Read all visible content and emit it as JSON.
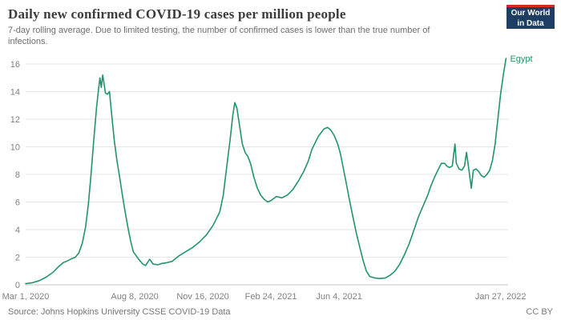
{
  "header": {
    "title": "Daily new confirmed COVID-19 cases per million people",
    "subtitle": "7-day rolling average. Due to limited testing, the number of confirmed cases is lower than the true number of infections.",
    "logo_line1": "Our World",
    "logo_line2": "in Data",
    "logo_bg": "#1d3d63",
    "logo_accent": "#d42b21"
  },
  "footer": {
    "source": "Source: Johns Hopkins University CSSE COVID-19 Data",
    "license": "CC BY"
  },
  "chart_data": {
    "type": "line",
    "title": "Daily new confirmed COVID-19 cases per million people",
    "xlabel": "",
    "ylabel": "",
    "grid": true,
    "legend_position": "end-of-line",
    "x_unit": "days since Mar 1, 2020",
    "xlim_days": [
      0,
      708
    ],
    "ylim": [
      0,
      16.5
    ],
    "y_ticks": [
      0,
      2,
      4,
      6,
      8,
      10,
      12,
      14,
      16
    ],
    "x_ticks": [
      {
        "day": 0,
        "label": "Mar 1, 2020"
      },
      {
        "day": 160,
        "label": "Aug 8, 2020"
      },
      {
        "day": 260,
        "label": "Nov 16, 2020"
      },
      {
        "day": 360,
        "label": "Feb 24, 2021"
      },
      {
        "day": 460,
        "label": "Jun 4, 2021"
      },
      {
        "day": 697,
        "label": "Jan 27, 2022"
      }
    ],
    "series": [
      {
        "name": "Egypt",
        "color": "#22946b",
        "points": [
          [
            0,
            0.08
          ],
          [
            10,
            0.15
          ],
          [
            20,
            0.3
          ],
          [
            30,
            0.55
          ],
          [
            40,
            0.9
          ],
          [
            48,
            1.3
          ],
          [
            55,
            1.6
          ],
          [
            62,
            1.75
          ],
          [
            68,
            1.9
          ],
          [
            73,
            2.0
          ],
          [
            78,
            2.3
          ],
          [
            83,
            3.0
          ],
          [
            88,
            4.2
          ],
          [
            92,
            5.8
          ],
          [
            96,
            8.0
          ],
          [
            100,
            10.5
          ],
          [
            104,
            12.8
          ],
          [
            107,
            14.2
          ],
          [
            109,
            15.0
          ],
          [
            111,
            14.3
          ],
          [
            113,
            15.2
          ],
          [
            115,
            14.6
          ],
          [
            117,
            13.9
          ],
          [
            120,
            13.8
          ],
          [
            123,
            14.0
          ],
          [
            126,
            12.5
          ],
          [
            130,
            10.5
          ],
          [
            134,
            9.0
          ],
          [
            138,
            7.8
          ],
          [
            142,
            6.5
          ],
          [
            146,
            5.3
          ],
          [
            150,
            4.2
          ],
          [
            154,
            3.2
          ],
          [
            158,
            2.4
          ],
          [
            165,
            1.9
          ],
          [
            172,
            1.5
          ],
          [
            176,
            1.4
          ],
          [
            182,
            1.85
          ],
          [
            187,
            1.5
          ],
          [
            194,
            1.45
          ],
          [
            200,
            1.55
          ],
          [
            207,
            1.6
          ],
          [
            215,
            1.7
          ],
          [
            225,
            2.1
          ],
          [
            235,
            2.4
          ],
          [
            245,
            2.7
          ],
          [
            255,
            3.1
          ],
          [
            265,
            3.6
          ],
          [
            275,
            4.3
          ],
          [
            282,
            5.0
          ],
          [
            285,
            5.3
          ],
          [
            290,
            6.5
          ],
          [
            295,
            8.5
          ],
          [
            300,
            10.5
          ],
          [
            304,
            12.3
          ],
          [
            307,
            13.2
          ],
          [
            310,
            12.8
          ],
          [
            314,
            11.5
          ],
          [
            318,
            10.2
          ],
          [
            322,
            9.6
          ],
          [
            326,
            9.3
          ],
          [
            330,
            8.8
          ],
          [
            335,
            7.8
          ],
          [
            340,
            7.0
          ],
          [
            345,
            6.5
          ],
          [
            350,
            6.2
          ],
          [
            355,
            6.0
          ],
          [
            360,
            6.1
          ],
          [
            368,
            6.4
          ],
          [
            376,
            6.3
          ],
          [
            384,
            6.5
          ],
          [
            392,
            6.9
          ],
          [
            400,
            7.5
          ],
          [
            408,
            8.2
          ],
          [
            415,
            9.0
          ],
          [
            420,
            9.8
          ],
          [
            430,
            10.8
          ],
          [
            438,
            11.3
          ],
          [
            443,
            11.4
          ],
          [
            448,
            11.2
          ],
          [
            453,
            10.8
          ],
          [
            458,
            10.2
          ],
          [
            462,
            9.5
          ],
          [
            466,
            8.5
          ],
          [
            470,
            7.5
          ],
          [
            475,
            6.2
          ],
          [
            480,
            5.0
          ],
          [
            485,
            3.8
          ],
          [
            490,
            2.8
          ],
          [
            495,
            1.8
          ],
          [
            500,
            1.0
          ],
          [
            505,
            0.6
          ],
          [
            512,
            0.5
          ],
          [
            520,
            0.45
          ],
          [
            528,
            0.5
          ],
          [
            535,
            0.7
          ],
          [
            542,
            1.0
          ],
          [
            549,
            1.5
          ],
          [
            556,
            2.2
          ],
          [
            563,
            3.0
          ],
          [
            570,
            4.0
          ],
          [
            577,
            5.0
          ],
          [
            584,
            5.8
          ],
          [
            590,
            6.5
          ],
          [
            595,
            7.2
          ],
          [
            600,
            7.8
          ],
          [
            605,
            8.3
          ],
          [
            610,
            8.8
          ],
          [
            615,
            8.8
          ],
          [
            618,
            8.6
          ],
          [
            622,
            8.5
          ],
          [
            626,
            8.6
          ],
          [
            630,
            10.2
          ],
          [
            632,
            8.8
          ],
          [
            636,
            8.4
          ],
          [
            640,
            8.3
          ],
          [
            644,
            8.6
          ],
          [
            647,
            9.6
          ],
          [
            650,
            8.5
          ],
          [
            654,
            7.0
          ],
          [
            657,
            8.3
          ],
          [
            661,
            8.4
          ],
          [
            665,
            8.2
          ],
          [
            669,
            7.9
          ],
          [
            673,
            7.8
          ],
          [
            677,
            8.0
          ],
          [
            681,
            8.3
          ],
          [
            685,
            9.0
          ],
          [
            689,
            10.2
          ],
          [
            693,
            12.0
          ],
          [
            697,
            13.8
          ],
          [
            701,
            15.2
          ],
          [
            705,
            16.4
          ]
        ]
      }
    ]
  }
}
